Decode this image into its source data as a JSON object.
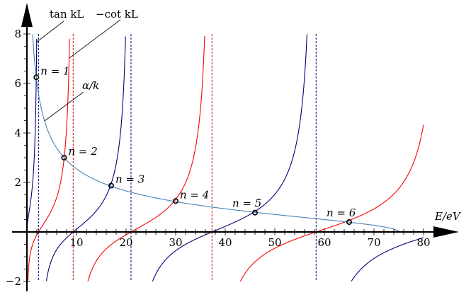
{
  "chart_data": {
    "type": "line",
    "title": "",
    "xlabel": "E/eV",
    "ylabel": "",
    "xlim": [
      0,
      80
    ],
    "ylim": [
      -2,
      8
    ],
    "x_ticks": [
      "10",
      "20",
      "30",
      "40",
      "50",
      "60",
      "70",
      "80"
    ],
    "y_ticks": [
      "-2",
      "2",
      "4",
      "6",
      "8"
    ],
    "well_depth_eV": 75,
    "first_tan_asymptote_eV": 2.333,
    "series": [
      {
        "name": "tan kL",
        "color": "#00007a",
        "function": "tan(kL)"
      },
      {
        "name": "-cot kL",
        "color": "#ff0000",
        "function": "-cot(kL)"
      },
      {
        "name": "α/k",
        "color": "#4682b4",
        "function": "sqrt((75-E)/E)"
      }
    ],
    "asymptotes": [
      {
        "E": 2.333,
        "color": "#00007a"
      },
      {
        "E": 9.33,
        "color": "#cc0000"
      },
      {
        "E": 21.0,
        "color": "#00007a"
      },
      {
        "E": 37.33,
        "color": "#cc0000"
      },
      {
        "E": 58.33,
        "color": "#00007a"
      }
    ],
    "intersections": [
      {
        "label": "n = 1",
        "E": 1.9,
        "y": 6.25
      },
      {
        "label": "n = 2",
        "E": 7.5,
        "y": 3.0
      },
      {
        "label": "n = 3",
        "E": 17.0,
        "y": 1.87
      },
      {
        "label": "n = 4",
        "E": 30.0,
        "y": 1.25
      },
      {
        "label": "n = 5",
        "E": 46.0,
        "y": 0.78
      },
      {
        "label": "n = 6",
        "E": 65.0,
        "y": 0.4
      }
    ],
    "annotations": [
      "tan kL",
      "−cot kL",
      "α/k"
    ]
  }
}
